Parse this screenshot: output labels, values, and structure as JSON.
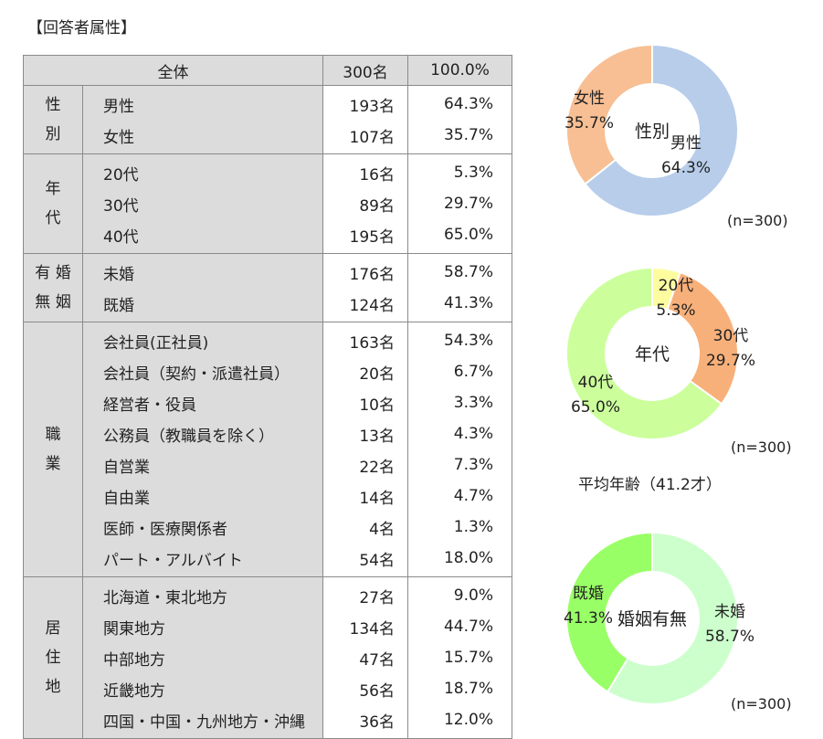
{
  "heading": "【回答者属性】",
  "total": {
    "label": "全体",
    "count": "300名",
    "pct": "100.0%"
  },
  "groups": [
    {
      "label": "性\n別",
      "rows": [
        {
          "label": "男性",
          "count": "193名",
          "pct": "64.3%"
        },
        {
          "label": "女性",
          "count": "107名",
          "pct": "35.7%"
        }
      ]
    },
    {
      "label": "年\n代",
      "rows": [
        {
          "label": "20代",
          "count": "16名",
          "pct": "5.3%"
        },
        {
          "label": "30代",
          "count": "89名",
          "pct": "29.7%"
        },
        {
          "label": "40代",
          "count": "195名",
          "pct": "65.0%"
        }
      ]
    },
    {
      "label": "有 婚\n無 姻",
      "rows": [
        {
          "label": "未婚",
          "count": "176名",
          "pct": "58.7%"
        },
        {
          "label": "既婚",
          "count": "124名",
          "pct": "41.3%"
        }
      ]
    },
    {
      "label": "職\n業",
      "rows": [
        {
          "label": "会社員(正社員)",
          "count": "163名",
          "pct": "54.3%"
        },
        {
          "label": "会社員（契約・派遣社員）",
          "count": "20名",
          "pct": "6.7%"
        },
        {
          "label": "経営者・役員",
          "count": "10名",
          "pct": "3.3%"
        },
        {
          "label": "公務員（教職員を除く）",
          "count": "13名",
          "pct": "4.3%"
        },
        {
          "label": "自営業",
          "count": "22名",
          "pct": "7.3%"
        },
        {
          "label": "自由業",
          "count": "14名",
          "pct": "4.7%"
        },
        {
          "label": "医師・医療関係者",
          "count": "4名",
          "pct": "1.3%"
        },
        {
          "label": "パート・アルバイト",
          "count": "54名",
          "pct": "18.0%"
        }
      ]
    },
    {
      "label": "居\n住\n地",
      "rows": [
        {
          "label": "北海道・東北地方",
          "count": "27名",
          "pct": "9.0%"
        },
        {
          "label": "関東地方",
          "count": "134名",
          "pct": "44.7%"
        },
        {
          "label": "中部地方",
          "count": "47名",
          "pct": "15.7%"
        },
        {
          "label": "近畿地方",
          "count": "56名",
          "pct": "18.7%"
        },
        {
          "label": "四国・中国・九州地方・沖縄",
          "count": "36名",
          "pct": "12.0%"
        }
      ]
    }
  ],
  "chart_data": [
    {
      "type": "pie",
      "title": "性別",
      "note": "(n=300)",
      "slices": [
        {
          "label": "男性",
          "value": 64.3,
          "value_label": "64.3%",
          "color": "#b7cdea"
        },
        {
          "label": "女性",
          "value": 35.7,
          "value_label": "35.7%",
          "color": "#f7bf93"
        }
      ]
    },
    {
      "type": "pie",
      "title": "年代",
      "note": "(n=300)",
      "extra": "平均年齢（41.2才）",
      "slices": [
        {
          "label": "20代",
          "value": 5.3,
          "value_label": "5.3%",
          "color": "#fdfda0"
        },
        {
          "label": "30代",
          "value": 29.7,
          "value_label": "29.7%",
          "color": "#f8b07a"
        },
        {
          "label": "40代",
          "value": 65.0,
          "value_label": "65.0%",
          "color": "#ccff9c"
        }
      ]
    },
    {
      "type": "pie",
      "title": "婚姻有無",
      "note": "(n=300)",
      "slices": [
        {
          "label": "未婚",
          "value": 58.7,
          "value_label": "58.7%",
          "color": "#ccffcc"
        },
        {
          "label": "既婚",
          "value": 41.3,
          "value_label": "41.3%",
          "color": "#99ff66"
        }
      ]
    }
  ]
}
